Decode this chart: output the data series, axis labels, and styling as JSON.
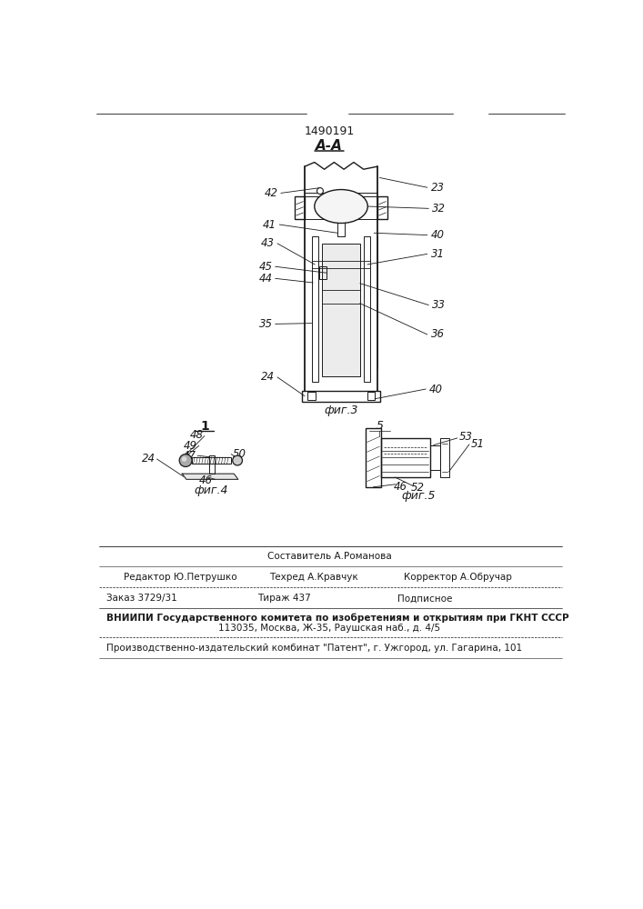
{
  "patent_number": "1490191",
  "background_color": "#ffffff",
  "line_color": "#1a1a1a",
  "fig3_label": "фиг.3",
  "fig4_label": "фиг.4",
  "fig5_label": "фиг.5",
  "section_label": "А-А",
  "fig1_label": "1",
  "fig5_num": "5"
}
